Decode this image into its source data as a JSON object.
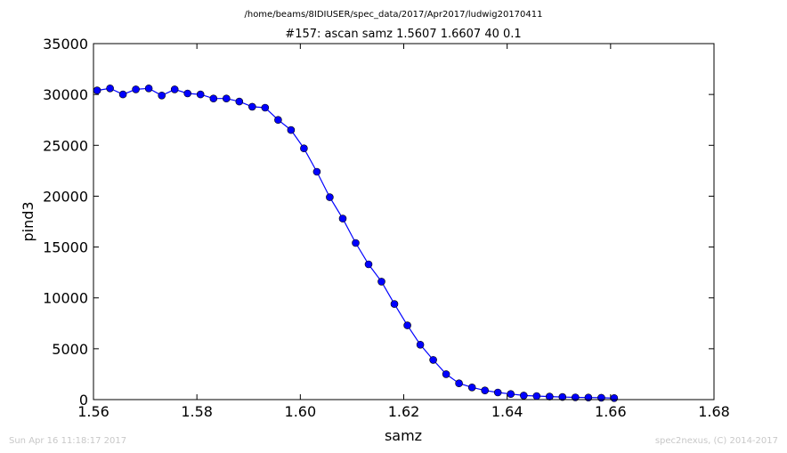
{
  "header": {
    "file_path": "/home/beams/8IDIUSER/spec_data/2017/Apr2017/ludwig20170411"
  },
  "footer": {
    "timestamp": "Sun Apr 16 11:18:17 2017",
    "credit": "spec2nexus, (C) 2014-2017"
  },
  "colors": {
    "series": "#0000ff",
    "marker_fill": "#0000ff",
    "axes": "#000000",
    "footer_text": "#c8c8c8"
  },
  "chart_data": {
    "type": "line",
    "title": "#157: ascan  samz 1.5607 1.6607  40 0.1",
    "xlabel": "samz",
    "ylabel": "pind3",
    "xlim": [
      1.56,
      1.68
    ],
    "ylim": [
      0,
      35000
    ],
    "xticks": [
      1.56,
      1.58,
      1.6,
      1.62,
      1.64,
      1.66,
      1.68
    ],
    "xtick_labels": [
      "1.56",
      "1.58",
      "1.60",
      "1.62",
      "1.64",
      "1.66",
      "1.68"
    ],
    "yticks": [
      0,
      5000,
      10000,
      15000,
      20000,
      25000,
      30000,
      35000
    ],
    "ytick_labels": [
      "0",
      "5000",
      "10000",
      "15000",
      "20000",
      "25000",
      "30000",
      "35000"
    ],
    "grid": false,
    "legend": "none",
    "marker": "circle",
    "series": [
      {
        "x": [
          1.5607,
          1.5632,
          1.5657,
          1.5682,
          1.5707,
          1.5732,
          1.5757,
          1.5782,
          1.5807,
          1.5832,
          1.5857,
          1.5882,
          1.5907,
          1.5932,
          1.5957,
          1.5982,
          1.6007,
          1.6032,
          1.6057,
          1.6082,
          1.6107,
          1.6132,
          1.6157,
          1.6182,
          1.6207,
          1.6232,
          1.6257,
          1.6282,
          1.6307,
          1.6332,
          1.6357,
          1.6382,
          1.6407,
          1.6432,
          1.6457,
          1.6482,
          1.6507,
          1.6532,
          1.6557,
          1.6582,
          1.6607
        ],
        "values": [
          30400,
          30600,
          30000,
          30500,
          30600,
          29900,
          30500,
          30100,
          30000,
          29600,
          29600,
          29300,
          28800,
          28700,
          27500,
          26500,
          24700,
          22400,
          19900,
          17800,
          15400,
          13300,
          11600,
          9400,
          7300,
          5400,
          3900,
          2500,
          1600,
          1200,
          900,
          700,
          550,
          400,
          350,
          300,
          250,
          220,
          200,
          180,
          150
        ]
      }
    ]
  }
}
